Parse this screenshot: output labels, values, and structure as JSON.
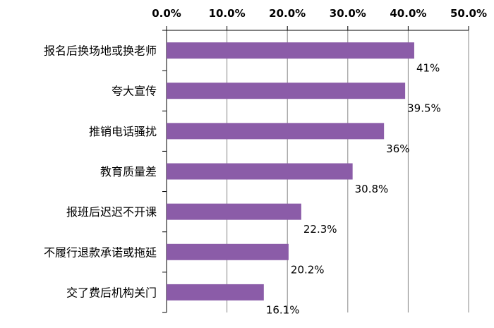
{
  "chart_data": {
    "type": "bar",
    "orientation": "horizontal",
    "categories": [
      "报名后换场地或换老师",
      "夸大宣传",
      "推销电话骚扰",
      "教育质量差",
      "报班后迟迟不开课",
      "不履行退款承诺或拖延",
      "交了费后机构关门"
    ],
    "values": [
      41,
      39.5,
      36,
      30.8,
      22.3,
      20.2,
      16.1
    ],
    "value_labels": [
      "41%",
      "39.5%",
      "36%",
      "30.8%",
      "22.3%",
      "20.2%",
      "16.1%"
    ],
    "xlim": [
      0,
      50
    ],
    "x_ticks": [
      0,
      10,
      20,
      30,
      40,
      50
    ],
    "x_tick_labels": [
      "0.0%",
      "10.0%",
      "20.0%",
      "30.0%",
      "40.0%",
      "50.0%"
    ],
    "x_axis_position": "top",
    "grid": true,
    "legend": "none",
    "bar_color": "#8B5CA8",
    "grid_color": "#888888",
    "title": "",
    "xlabel": "",
    "ylabel": ""
  }
}
